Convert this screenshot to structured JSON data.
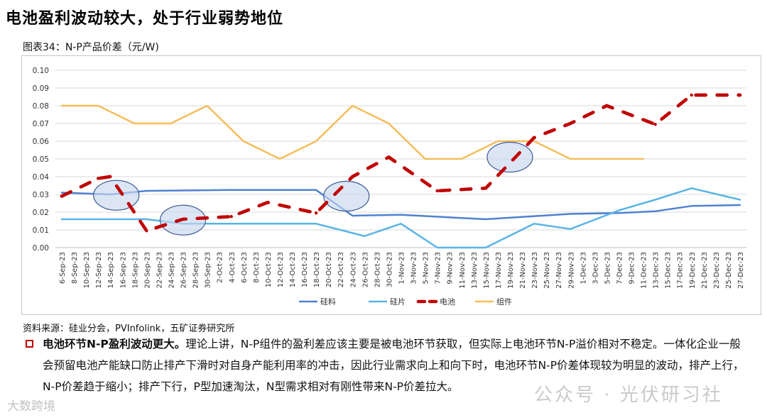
{
  "page": {
    "title": "电池盈利波动较大，处于行业弱势地位",
    "caption": "图表34：N-P产品价差（元/W)",
    "source": "资料来源：硅业分会，PVInfolink，五矿证券研究所",
    "paragraph_bold": "电池环节N-P盈利波动更大。",
    "paragraph_text": "理论上讲，N-P组件的盈利差应该主要是被电池环节获取，但实际上电池环节N-P溢价相对不稳定。一体化企业一般会预留电池产能缺口防止排产下滑时对自身产能利用率的冲击，因此行业需求向上和向下时，电池环节N-P价差体现较为明显的波动，排产上行，N-P价差趋于缩小；排产下行，P型加速淘汰，N型需求相对有刚性带来N-P价差拉大。",
    "watermark_left": "大数跨境",
    "watermark_right": "公众号 · 光伏研习社"
  },
  "colors": {
    "silicon": "#4f81d2",
    "wafer": "#5ab4e6",
    "cell": "#c00000",
    "module": "#f5bd5a",
    "grid": "#d9d9d9",
    "bubble_fill": "#c9d7ee",
    "bubble_stroke": "#3b5a94",
    "bullet": "#c00000"
  },
  "chart_data": {
    "type": "line",
    "title": "N-P产品价差（元/W)",
    "xlabel": "",
    "ylabel": "",
    "ylim": [
      0,
      0.1
    ],
    "yticks": [
      "0.00",
      "0.01",
      "0.02",
      "0.03",
      "0.04",
      "0.05",
      "0.06",
      "0.07",
      "0.08",
      "0.09",
      "0.10"
    ],
    "categories": [
      "6-Sep-23",
      "8-Sep-23",
      "10-Sep-23",
      "12-Sep-23",
      "14-Sep-23",
      "16-Sep-23",
      "18-Sep-23",
      "20-Sep-23",
      "22-Sep-23",
      "24-Sep-23",
      "26-Sep-23",
      "28-Sep-23",
      "30-Sep-23",
      "2-Oct-23",
      "4-Oct-23",
      "6-Oct-23",
      "8-Oct-23",
      "10-Oct-23",
      "12-Oct-23",
      "14-Oct-23",
      "16-Oct-23",
      "18-Oct-23",
      "20-Oct-23",
      "22-Oct-23",
      "24-Oct-23",
      "26-Oct-23",
      "28-Oct-23",
      "30-Oct-23",
      "1-Nov-23",
      "3-Nov-23",
      "5-Nov-23",
      "7-Nov-23",
      "9-Nov-23",
      "11-Nov-23",
      "13-Nov-23",
      "15-Nov-23",
      "17-Nov-23",
      "19-Nov-23",
      "21-Nov-23",
      "23-Nov-23",
      "25-Nov-23",
      "27-Nov-23",
      "29-Nov-23",
      "1-Dec-23",
      "3-Dec-23",
      "5-Dec-23",
      "7-Dec-23",
      "9-Dec-23",
      "11-Dec-23",
      "13-Dec-23",
      "15-Dec-23",
      "17-Dec-23",
      "19-Dec-23",
      "21-Dec-23",
      "23-Dec-23",
      "25-Dec-23",
      "27-Dec-23"
    ],
    "series": [
      {
        "name": "硅料",
        "style": "solid",
        "color": "#4f81d2",
        "points": [
          [
            0,
            0.031
          ],
          [
            4,
            0.03
          ],
          [
            7,
            0.032
          ],
          [
            14,
            0.0325
          ],
          [
            21,
            0.0325
          ],
          [
            24,
            0.018
          ],
          [
            28,
            0.0185
          ],
          [
            35,
            0.016
          ],
          [
            42,
            0.019
          ],
          [
            46,
            0.0195
          ],
          [
            49,
            0.0205
          ],
          [
            52,
            0.0235
          ],
          [
            56,
            0.024
          ]
        ]
      },
      {
        "name": "硅片",
        "style": "solid",
        "color": "#5ab4e6",
        "points": [
          [
            0,
            0.016
          ],
          [
            7,
            0.016
          ],
          [
            10,
            0.0135
          ],
          [
            21,
            0.0135
          ],
          [
            25,
            0.0065
          ],
          [
            28,
            0.0135
          ],
          [
            31,
            0.0
          ],
          [
            35,
            0.0
          ],
          [
            39,
            0.0135
          ],
          [
            42,
            0.0105
          ],
          [
            46,
            0.021
          ],
          [
            49,
            0.027
          ],
          [
            52,
            0.0335
          ],
          [
            56,
            0.027
          ]
        ]
      },
      {
        "name": "电池",
        "style": "dashed",
        "color": "#c00000",
        "points": [
          [
            0,
            0.029
          ],
          [
            3,
            0.039
          ],
          [
            4,
            0.04
          ],
          [
            5,
            0.03
          ],
          [
            7,
            0.0095
          ],
          [
            10,
            0.016
          ],
          [
            14,
            0.0175
          ],
          [
            17,
            0.0255
          ],
          [
            21,
            0.0195
          ],
          [
            24,
            0.04
          ],
          [
            27,
            0.051
          ],
          [
            31,
            0.032
          ],
          [
            35,
            0.0335
          ],
          [
            39,
            0.062
          ],
          [
            42,
            0.07
          ],
          [
            45,
            0.08
          ],
          [
            49,
            0.0695
          ],
          [
            52,
            0.086
          ],
          [
            56,
            0.086
          ]
        ]
      },
      {
        "name": "组件",
        "style": "solid",
        "color": "#f5bd5a",
        "points": [
          [
            0,
            0.08
          ],
          [
            3,
            0.08
          ],
          [
            6,
            0.07
          ],
          [
            9,
            0.07
          ],
          [
            12,
            0.08
          ],
          [
            15,
            0.06
          ],
          [
            18,
            0.05
          ],
          [
            21,
            0.06
          ],
          [
            24,
            0.08
          ],
          [
            27,
            0.07
          ],
          [
            30,
            0.05
          ],
          [
            33,
            0.05
          ],
          [
            36,
            0.06
          ],
          [
            39,
            0.06
          ],
          [
            42,
            0.05
          ],
          [
            45,
            0.05
          ],
          [
            48,
            0.05
          ]
        ]
      }
    ],
    "legend": [
      "硅料",
      "硅片",
      "电池",
      "组件"
    ],
    "legend_position": "bottom",
    "grid": true
  }
}
